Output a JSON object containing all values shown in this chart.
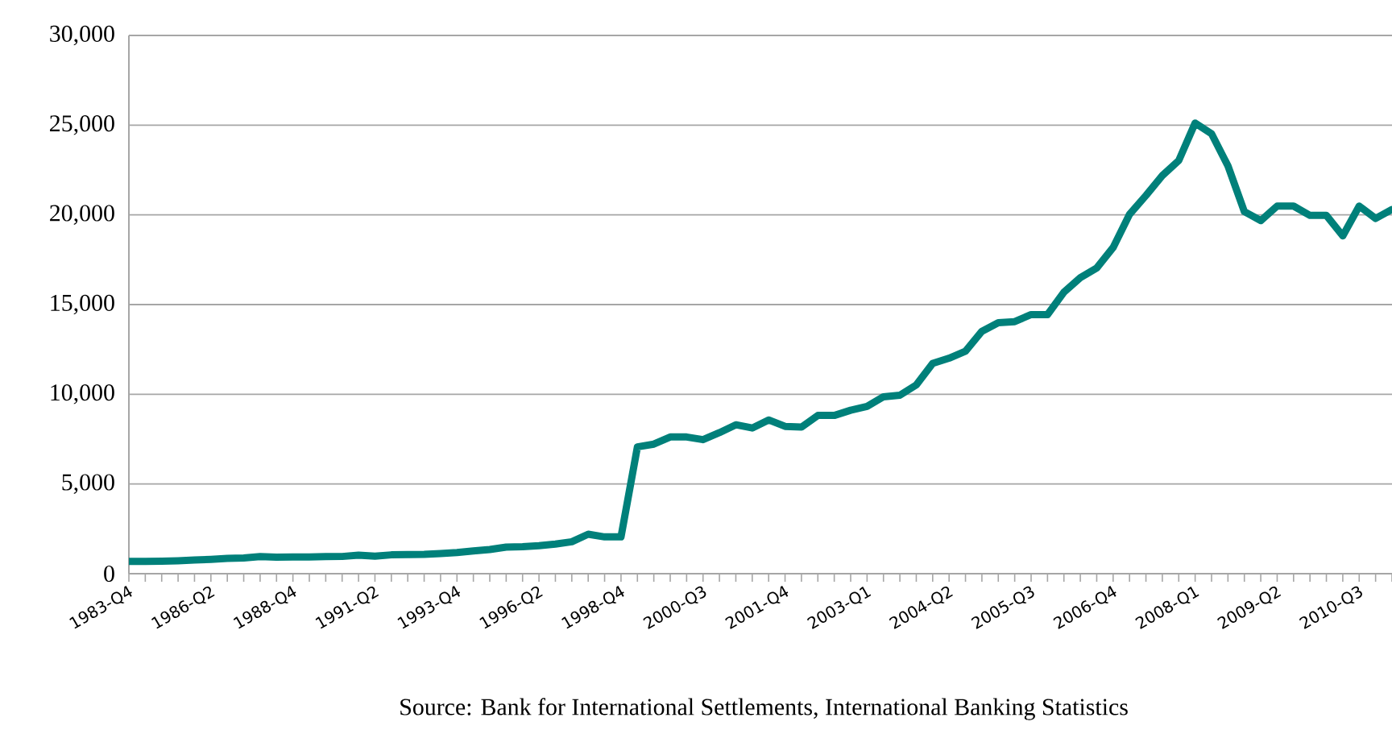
{
  "chart_data": {
    "type": "line",
    "categories": [
      "1983-Q4",
      null,
      null,
      null,
      null,
      "1986-Q2",
      null,
      null,
      null,
      null,
      "1988-Q4",
      null,
      null,
      null,
      null,
      "1991-Q2",
      null,
      null,
      null,
      null,
      "1993-Q4",
      null,
      null,
      null,
      null,
      "1996-Q2",
      null,
      null,
      null,
      null,
      "1998-Q4",
      null,
      null,
      null,
      null,
      "2000-Q3",
      null,
      null,
      null,
      null,
      "2001-Q4",
      null,
      null,
      null,
      null,
      "2003-Q1",
      null,
      null,
      null,
      null,
      "2004-Q2",
      null,
      null,
      null,
      null,
      "2005-Q3",
      null,
      null,
      null,
      null,
      "2006-Q4",
      null,
      null,
      null,
      null,
      "2008-Q1",
      null,
      null,
      null,
      null,
      "2009-Q2",
      null,
      null,
      null,
      null,
      "2010-Q3",
      null,
      null
    ],
    "series": [
      {
        "color": "#00807a",
        "values": [
          680,
          690,
          700,
          720,
          760,
          800,
          850,
          880,
          950,
          920,
          930,
          930,
          950,
          960,
          1030,
          980,
          1050,
          1070,
          1080,
          1120,
          1180,
          1270,
          1350,
          1480,
          1500,
          1560,
          1650,
          1780,
          2200,
          2050,
          2050,
          7070,
          7220,
          7620,
          7620,
          7470,
          7860,
          8300,
          8120,
          8570,
          8210,
          8170,
          8820,
          8820,
          9110,
          9320,
          9860,
          9950,
          10520,
          11720,
          12010,
          12400,
          13510,
          13990,
          14050,
          14440,
          14440,
          15690,
          16500,
          17040,
          18180,
          20030,
          21080,
          22190,
          23030,
          25120,
          24520,
          22730,
          20180,
          19680,
          20490,
          20490,
          19970,
          19970,
          18830,
          20490,
          19800,
          20300
        ]
      }
    ],
    "ylim": [
      0,
      30000
    ],
    "yticks": [
      0,
      {
        "value": 5000,
        "label": "5,000"
      },
      {
        "value": 10000,
        "label": "10,000"
      },
      {
        "value": 15000,
        "label": "15,000"
      },
      {
        "value": 20000,
        "label": "20,000"
      },
      {
        "value": 25000,
        "label": "25,000"
      },
      {
        "value": 30000,
        "label": "30,000"
      }
    ],
    "grid": "y",
    "annotations": [
      "Source: Bank for International Settlements, International Banking Statistics"
    ]
  }
}
